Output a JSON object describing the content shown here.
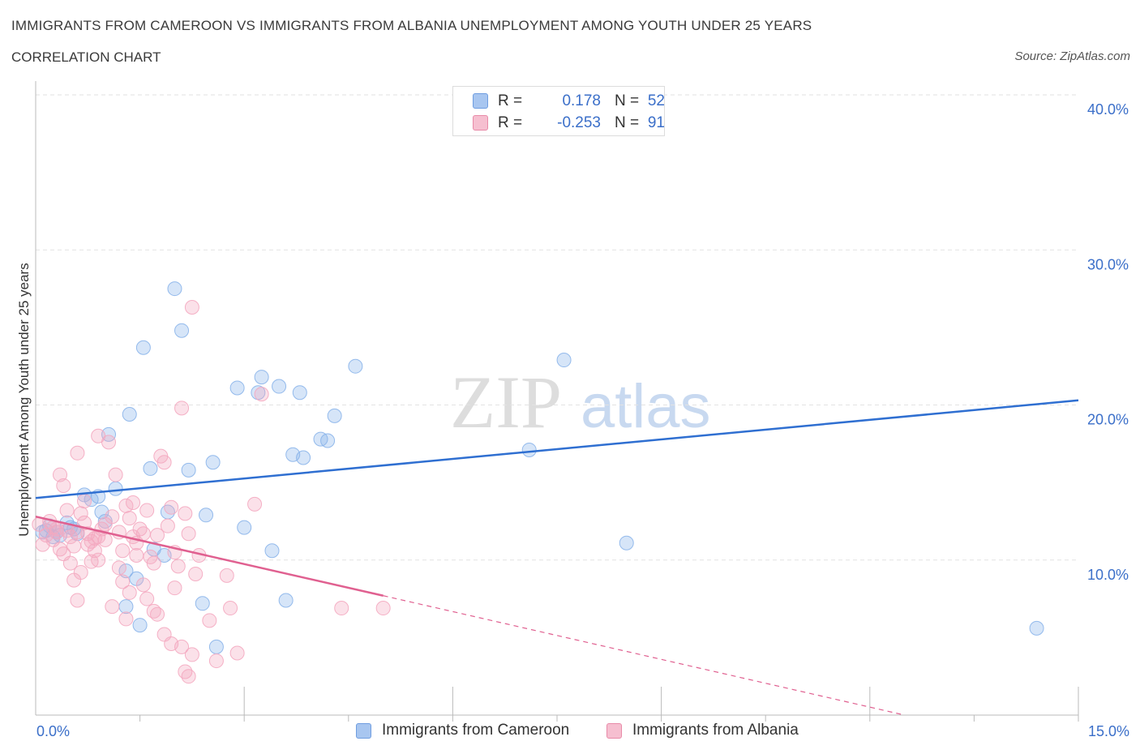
{
  "header": {
    "title": "IMMIGRANTS FROM CAMEROON VS IMMIGRANTS FROM ALBANIA UNEMPLOYMENT AMONG YOUTH UNDER 25 YEARS",
    "subtitle": "CORRELATION CHART",
    "source": "Source: ZipAtlas.com"
  },
  "watermark": {
    "zip": "ZIP",
    "atlas": "atlas"
  },
  "legend": {
    "rows": [
      {
        "r_label": "R =",
        "r_value": "0.178",
        "n_label": "N =",
        "n_value": "52",
        "color": "#a8c6f0",
        "border": "#6f9de0"
      },
      {
        "r_label": "R =",
        "r_value": "-0.253",
        "n_label": "N =",
        "n_value": "91",
        "color": "#f6bfd0",
        "border": "#e88aa8"
      }
    ]
  },
  "bottom_legend": [
    {
      "label": "Immigrants from Cameroon",
      "color": "#a8c6f0",
      "border": "#6f9de0"
    },
    {
      "label": "Immigrants from Albania",
      "color": "#f6bfd0",
      "border": "#e88aa8"
    }
  ],
  "chart_data": {
    "type": "scatter",
    "title": "IMMIGRANTS FROM CAMEROON VS IMMIGRANTS FROM ALBANIA UNEMPLOYMENT AMONG YOUTH UNDER 25 YEARS",
    "subtitle": "CORRELATION CHART",
    "xlabel": "",
    "ylabel": "Unemployment Among Youth under 25 years",
    "xlim": [
      0,
      15
    ],
    "ylim": [
      0,
      40
    ],
    "x_tick_labels": [
      "0.0%",
      "15.0%"
    ],
    "y_ticks": [
      10,
      20,
      30,
      40
    ],
    "y_tick_labels": [
      "10.0%",
      "20.0%",
      "30.0%",
      "40.0%"
    ],
    "grid": true,
    "legend_position": "top-center",
    "series": [
      {
        "name": "Immigrants from Cameroon",
        "color": "#8ab4ea",
        "line_color": "#2f6fd1",
        "r": 0.178,
        "n": 52,
        "trend": {
          "x": [
            0.0,
            15.0
          ],
          "y": [
            14.0,
            20.3
          ]
        },
        "points": [
          [
            0.1,
            11.8
          ],
          [
            0.15,
            11.9
          ],
          [
            0.2,
            12.2
          ],
          [
            0.3,
            11.8
          ],
          [
            0.35,
            11.6
          ],
          [
            0.45,
            12.4
          ],
          [
            0.5,
            12.1
          ],
          [
            0.55,
            12.0
          ],
          [
            0.6,
            11.7
          ],
          [
            0.7,
            14.2
          ],
          [
            0.8,
            13.9
          ],
          [
            0.9,
            14.1
          ],
          [
            1.0,
            12.5
          ],
          [
            1.05,
            18.1
          ],
          [
            1.15,
            14.6
          ],
          [
            1.35,
            19.4
          ],
          [
            1.55,
            23.7
          ],
          [
            1.65,
            15.9
          ],
          [
            1.7,
            10.7
          ],
          [
            1.85,
            10.3
          ],
          [
            1.9,
            13.1
          ],
          [
            2.0,
            27.5
          ],
          [
            2.1,
            24.8
          ],
          [
            2.2,
            15.8
          ],
          [
            2.45,
            12.9
          ],
          [
            2.55,
            16.3
          ],
          [
            2.9,
            21.1
          ],
          [
            3.0,
            12.1
          ],
          [
            3.2,
            20.8
          ],
          [
            3.25,
            21.8
          ],
          [
            3.4,
            10.6
          ],
          [
            3.5,
            21.2
          ],
          [
            3.7,
            16.8
          ],
          [
            3.8,
            20.8
          ],
          [
            3.85,
            16.6
          ],
          [
            4.1,
            17.8
          ],
          [
            4.2,
            17.7
          ],
          [
            4.3,
            19.3
          ],
          [
            4.6,
            22.5
          ],
          [
            7.1,
            17.1
          ],
          [
            7.6,
            22.9
          ],
          [
            8.5,
            11.1
          ],
          [
            14.4,
            5.6
          ],
          [
            1.3,
            9.3
          ],
          [
            1.3,
            7.0
          ],
          [
            1.45,
            8.8
          ],
          [
            1.5,
            5.8
          ],
          [
            2.4,
            7.2
          ],
          [
            2.6,
            4.4
          ],
          [
            3.6,
            7.4
          ],
          [
            0.25,
            11.5
          ],
          [
            0.95,
            13.1
          ]
        ]
      },
      {
        "name": "Immigrants from Albania",
        "color": "#f4a9c0",
        "line_color": "#e06090",
        "r": -0.253,
        "n": 91,
        "trend_solid": {
          "x": [
            0.0,
            5.0
          ],
          "y": [
            12.8,
            7.7
          ]
        },
        "trend_dashed": {
          "x": [
            5.0,
            12.5
          ],
          "y": [
            7.7,
            0.0
          ]
        },
        "points": [
          [
            0.05,
            12.3
          ],
          [
            0.1,
            11.0
          ],
          [
            0.15,
            11.6
          ],
          [
            0.2,
            12.5
          ],
          [
            0.25,
            11.3
          ],
          [
            0.3,
            12.0
          ],
          [
            0.35,
            15.5
          ],
          [
            0.4,
            14.8
          ],
          [
            0.45,
            13.2
          ],
          [
            0.5,
            11.5
          ],
          [
            0.55,
            10.9
          ],
          [
            0.6,
            11.8
          ],
          [
            0.65,
            13.0
          ],
          [
            0.7,
            12.4
          ],
          [
            0.75,
            11.7
          ],
          [
            0.8,
            11.2
          ],
          [
            0.85,
            10.6
          ],
          [
            0.9,
            11.5
          ],
          [
            0.95,
            12.0
          ],
          [
            1.0,
            11.3
          ],
          [
            1.05,
            17.6
          ],
          [
            1.1,
            12.8
          ],
          [
            1.15,
            15.5
          ],
          [
            1.2,
            11.8
          ],
          [
            1.25,
            10.6
          ],
          [
            1.3,
            13.5
          ],
          [
            1.35,
            12.7
          ],
          [
            1.4,
            11.5
          ],
          [
            1.45,
            10.3
          ],
          [
            1.5,
            12.0
          ],
          [
            1.55,
            11.7
          ],
          [
            1.6,
            13.2
          ],
          [
            1.65,
            10.2
          ],
          [
            1.7,
            9.8
          ],
          [
            1.75,
            11.6
          ],
          [
            1.8,
            16.7
          ],
          [
            1.85,
            16.3
          ],
          [
            1.9,
            12.2
          ],
          [
            1.95,
            13.4
          ],
          [
            2.0,
            10.5
          ],
          [
            2.05,
            9.6
          ],
          [
            2.1,
            19.8
          ],
          [
            2.15,
            13.0
          ],
          [
            2.2,
            11.7
          ],
          [
            2.25,
            26.3
          ],
          [
            2.3,
            9.1
          ],
          [
            2.35,
            10.3
          ],
          [
            2.5,
            6.1
          ],
          [
            2.6,
            3.5
          ],
          [
            2.75,
            9.0
          ],
          [
            2.8,
            6.9
          ],
          [
            2.9,
            4.0
          ],
          [
            3.15,
            13.6
          ],
          [
            3.25,
            20.7
          ],
          [
            4.4,
            6.9
          ],
          [
            5.0,
            6.9
          ],
          [
            0.5,
            9.8
          ],
          [
            0.55,
            8.7
          ],
          [
            0.6,
            7.4
          ],
          [
            0.65,
            9.2
          ],
          [
            0.7,
            13.8
          ],
          [
            0.75,
            11.0
          ],
          [
            0.8,
            9.9
          ],
          [
            0.85,
            11.4
          ],
          [
            0.9,
            10.0
          ],
          [
            1.0,
            12.3
          ],
          [
            1.1,
            7.0
          ],
          [
            1.2,
            9.5
          ],
          [
            1.25,
            8.6
          ],
          [
            1.3,
            6.2
          ],
          [
            1.35,
            7.9
          ],
          [
            1.4,
            13.7
          ],
          [
            1.45,
            11.1
          ],
          [
            1.55,
            8.4
          ],
          [
            1.6,
            7.5
          ],
          [
            1.7,
            6.7
          ],
          [
            1.75,
            6.5
          ],
          [
            1.85,
            5.2
          ],
          [
            1.95,
            4.6
          ],
          [
            2.0,
            8.2
          ],
          [
            2.1,
            4.4
          ],
          [
            2.15,
            2.8
          ],
          [
            2.2,
            2.5
          ],
          [
            2.25,
            3.9
          ],
          [
            0.3,
            11.8
          ],
          [
            0.4,
            10.4
          ],
          [
            0.45,
            11.9
          ],
          [
            0.35,
            10.7
          ],
          [
            0.25,
            12.1
          ],
          [
            0.6,
            16.9
          ],
          [
            0.9,
            18.0
          ]
        ]
      }
    ]
  }
}
